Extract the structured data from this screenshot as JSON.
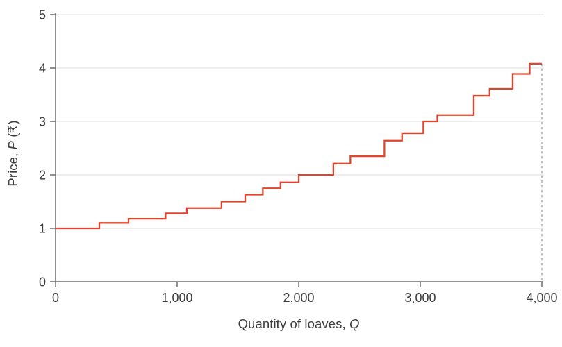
{
  "chart_data": {
    "type": "line",
    "subtype": "step-supply-curve",
    "title": "",
    "xlabel": "Quantity of loaves, Q",
    "ylabel": "Price, P (₹)",
    "xlabel_parts": [
      {
        "text": "Quantity of loaves, ",
        "italic": false
      },
      {
        "text": "Q",
        "italic": true
      }
    ],
    "ylabel_parts": [
      {
        "text": "Price, ",
        "italic": false
      },
      {
        "text": "P",
        "italic": true
      },
      {
        "text": " (₹)",
        "italic": false
      }
    ],
    "xlim": [
      0,
      4000
    ],
    "ylim": [
      0,
      5
    ],
    "x_ticks": [
      {
        "value": 0,
        "label": "0"
      },
      {
        "value": 1000,
        "label": "1,000"
      },
      {
        "value": 2000,
        "label": "2,000"
      },
      {
        "value": 3000,
        "label": "3,000"
      },
      {
        "value": 4000,
        "label": "4,000"
      }
    ],
    "y_ticks": [
      {
        "value": 0,
        "label": "0"
      },
      {
        "value": 1,
        "label": "1"
      },
      {
        "value": 2,
        "label": "2"
      },
      {
        "value": 3,
        "label": "3"
      },
      {
        "value": 4,
        "label": "4"
      },
      {
        "value": 5,
        "label": "5"
      }
    ],
    "grid": "horizontal-only",
    "legend": "none",
    "series": [
      {
        "name": "market-supply-step-curve",
        "color": "#e0462e",
        "steps": [
          {
            "q_from": 0,
            "q_to": 360,
            "price": 1.0
          },
          {
            "q_from": 360,
            "q_to": 600,
            "price": 1.1
          },
          {
            "q_from": 600,
            "q_to": 905,
            "price": 1.18
          },
          {
            "q_from": 905,
            "q_to": 1080,
            "price": 1.28
          },
          {
            "q_from": 1080,
            "q_to": 1365,
            "price": 1.38
          },
          {
            "q_from": 1365,
            "q_to": 1560,
            "price": 1.5
          },
          {
            "q_from": 1560,
            "q_to": 1705,
            "price": 1.63
          },
          {
            "q_from": 1705,
            "q_to": 1850,
            "price": 1.75
          },
          {
            "q_from": 1850,
            "q_to": 2000,
            "price": 1.86
          },
          {
            "q_from": 2000,
            "q_to": 2285,
            "price": 2.0
          },
          {
            "q_from": 2285,
            "q_to": 2425,
            "price": 2.21
          },
          {
            "q_from": 2425,
            "q_to": 2705,
            "price": 2.35
          },
          {
            "q_from": 2705,
            "q_to": 2850,
            "price": 2.64
          },
          {
            "q_from": 2850,
            "q_to": 3025,
            "price": 2.78
          },
          {
            "q_from": 3025,
            "q_to": 3140,
            "price": 3.0
          },
          {
            "q_from": 3140,
            "q_to": 3440,
            "price": 3.12
          },
          {
            "q_from": 3440,
            "q_to": 3570,
            "price": 3.48
          },
          {
            "q_from": 3570,
            "q_to": 3760,
            "price": 3.61
          },
          {
            "q_from": 3760,
            "q_to": 3900,
            "price": 3.89
          },
          {
            "q_from": 3900,
            "q_to": 4000,
            "price": 4.08
          }
        ]
      }
    ],
    "annotations": [
      {
        "type": "dashed-vertical-guide",
        "x": 4000,
        "from_price": 4.08,
        "to_price": 0,
        "color": "#a8a8a8"
      }
    ],
    "colors": {
      "line": "#e0462e",
      "axis": "#6e6e6e",
      "grid": "#dcdcdc",
      "tick_text": "#3c3c3c",
      "guide": "#a8a8a8",
      "background": "#ffffff"
    }
  }
}
